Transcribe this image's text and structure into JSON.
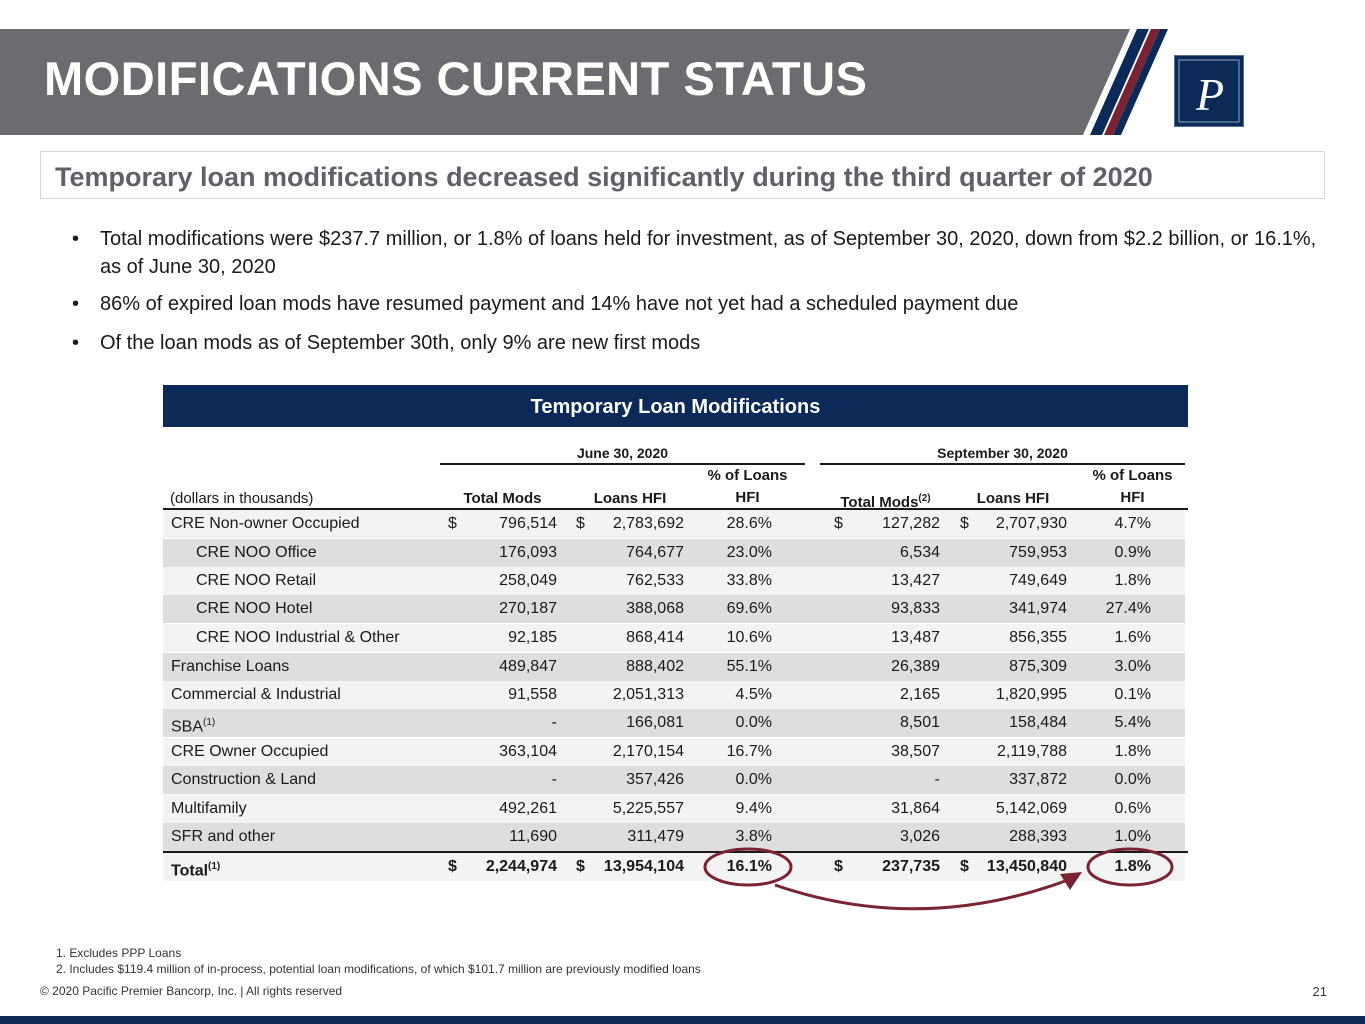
{
  "page": {
    "title": "MODIFICATIONS CURRENT STATUS",
    "logo_letter": "P",
    "subtitle": "Temporary loan modifications decreased significantly during the third quarter of 2020",
    "bullets": [
      "Total modifications were $237.7 million, or 1.8% of loans held for investment, as of September 30, 2020, down from $2.2 billion, or 16.1%, as of June 30, 2020",
      "86% of expired loan mods have resumed payment and 14% have not yet had a scheduled payment due",
      "Of the loan mods as of September 30th, only 9% are new first mods"
    ]
  },
  "table": {
    "banner": "Temporary Loan Modifications",
    "group_june": "June 30, 2020",
    "group_sept": "September 30, 2020",
    "units": "(dollars in thousands)",
    "col_total_mods": "Total Mods",
    "col_loans_hfi": "Loans HFI",
    "col_pct_line1": "% of Loans",
    "col_pct_line2": "HFI",
    "col_total_mods_sup": "(2)",
    "currency": "$",
    "rows": [
      {
        "label": "CRE Non-owner Occupied",
        "jm": "796,514",
        "jl": "2,783,692",
        "jp": "28.6%",
        "sm": "127,282",
        "sl": "2,707,930",
        "sp": "4.7%"
      },
      {
        "label": "CRE NOO Office",
        "jm": "176,093",
        "jl": "764,677",
        "jp": "23.0%",
        "sm": "6,534",
        "sl": "759,953",
        "sp": "0.9%"
      },
      {
        "label": "CRE NOO Retail",
        "jm": "258,049",
        "jl": "762,533",
        "jp": "33.8%",
        "sm": "13,427",
        "sl": "749,649",
        "sp": "1.8%"
      },
      {
        "label": "CRE NOO Hotel",
        "jm": "270,187",
        "jl": "388,068",
        "jp": "69.6%",
        "sm": "93,833",
        "sl": "341,974",
        "sp": "27.4%"
      },
      {
        "label": "CRE NOO Industrial & Other",
        "jm": "92,185",
        "jl": "868,414",
        "jp": "10.6%",
        "sm": "13,487",
        "sl": "856,355",
        "sp": "1.6%"
      },
      {
        "label": "Franchise Loans",
        "jm": "489,847",
        "jl": "888,402",
        "jp": "55.1%",
        "sm": "26,389",
        "sl": "875,309",
        "sp": "3.0%"
      },
      {
        "label": "Commercial & Industrial",
        "jm": "91,558",
        "jl": "2,051,313",
        "jp": "4.5%",
        "sm": "2,165",
        "sl": "1,820,995",
        "sp": "0.1%"
      },
      {
        "label": "SBA",
        "sup": "(1)",
        "jm": "-",
        "jl": "166,081",
        "jp": "0.0%",
        "sm": "8,501",
        "sl": "158,484",
        "sp": "5.4%"
      },
      {
        "label": "CRE Owner Occupied",
        "jm": "363,104",
        "jl": "2,170,154",
        "jp": "16.7%",
        "sm": "38,507",
        "sl": "2,119,788",
        "sp": "1.8%"
      },
      {
        "label": "Construction & Land",
        "jm": "-",
        "jl": "357,426",
        "jp": "0.0%",
        "sm": "-",
        "sl": "337,872",
        "sp": "0.0%"
      },
      {
        "label": "Multifamily",
        "jm": "492,261",
        "jl": "5,225,557",
        "jp": "9.4%",
        "sm": "31,864",
        "sl": "5,142,069",
        "sp": "0.6%"
      },
      {
        "label": "SFR and other",
        "jm": "11,690",
        "jl": "311,479",
        "jp": "3.8%",
        "sm": "3,026",
        "sl": "288,393",
        "sp": "1.0%"
      }
    ],
    "total": {
      "label": "Total",
      "sup": "(1)",
      "jm": "2,244,974",
      "jl": "13,954,104",
      "jp": "16.1%",
      "sm": "237,735",
      "sl": "13,450,840",
      "sp": "1.8%"
    }
  },
  "footnotes": [
    "1. Excludes PPP Loans",
    "2. Includes $119.4 million of in-process, potential loan modifications, of which $101.7 million are previously modified loans"
  ],
  "footer": {
    "copyright": "© 2020 Pacific Premier Bancorp, Inc. | All rights reserved",
    "page_number": "21"
  },
  "colors": {
    "navy": "#0b2a57",
    "band_gray": "#6b6c70",
    "maroon": "#7b2431"
  }
}
